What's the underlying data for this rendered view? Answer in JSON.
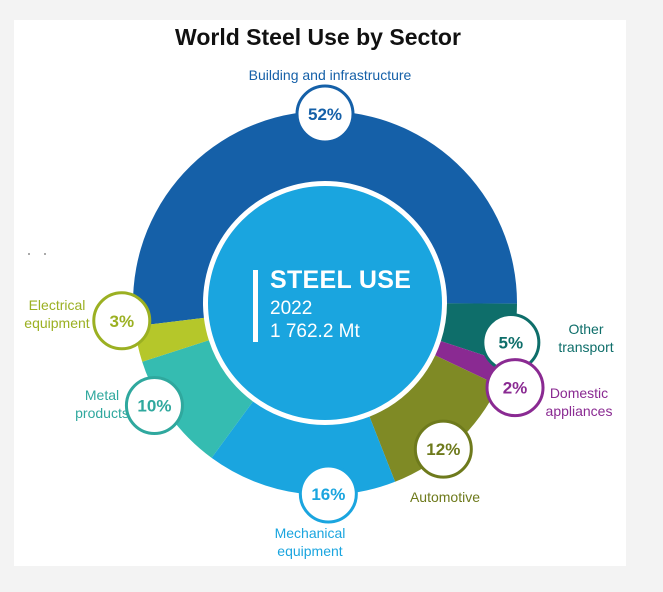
{
  "chart_data": {
    "type": "pie",
    "title": "World Steel Use by Sector",
    "center": {
      "heading": "STEEL USE",
      "year": "2022",
      "total": "1 762.2 Mt"
    },
    "slices": [
      {
        "label": "Building and infrastructure",
        "value": 52,
        "value_label": "52%",
        "color": "#1560a8",
        "label_color": "#1560a8"
      },
      {
        "label": "Other transport",
        "value": 5,
        "value_label": "5%",
        "color": "#0e6e6a",
        "label_color": "#0e6e6a"
      },
      {
        "label": "Domestic appliances",
        "value": 2,
        "value_label": "2%",
        "color": "#8a2a92",
        "label_color": "#8a2a92"
      },
      {
        "label": "Automotive",
        "value": 12,
        "value_label": "12%",
        "color": "#7f8a25",
        "label_color": "#6e7a1c"
      },
      {
        "label": "Mechanical equipment",
        "value": 16,
        "value_label": "16%",
        "color": "#1aa5df",
        "label_color": "#1aa5df"
      },
      {
        "label": "Metal products",
        "value": 10,
        "value_label": "10%",
        "color": "#35bcb1",
        "label_color": "#2fa89e"
      },
      {
        "label": "Electrical equipment",
        "value": 3,
        "value_label": "3%",
        "color": "#b5c72a",
        "label_color": "#9bb022"
      }
    ]
  }
}
